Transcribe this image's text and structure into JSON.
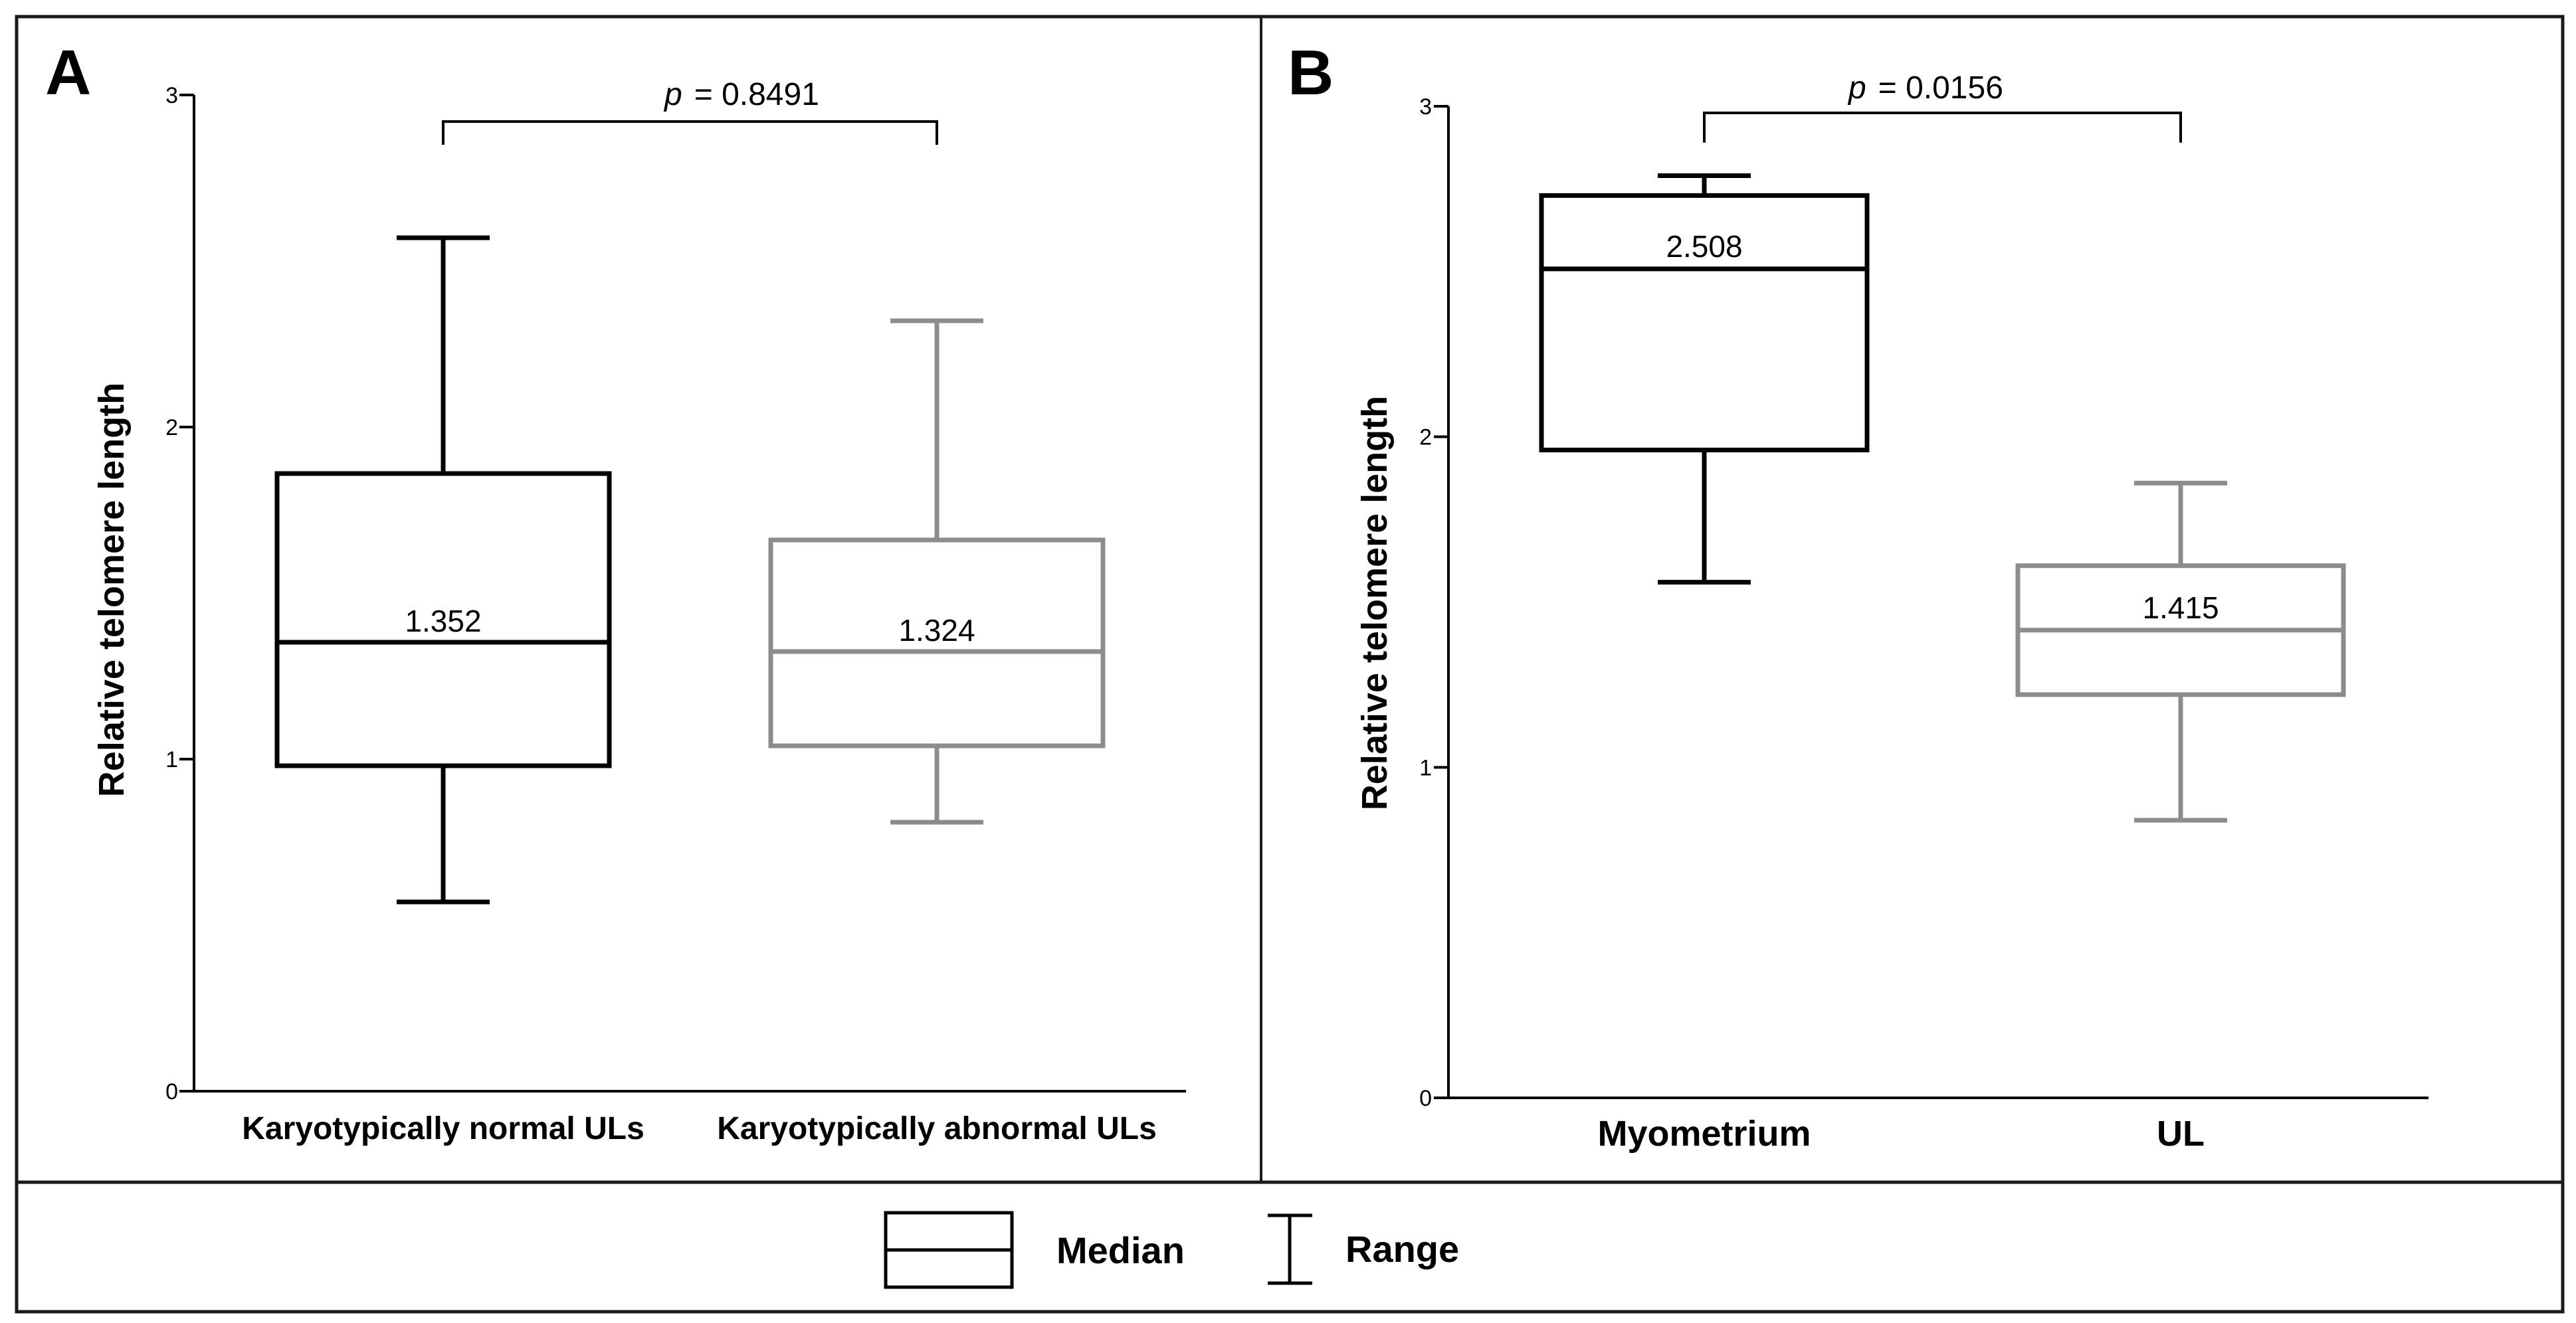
{
  "chart_data": [
    {
      "type": "boxplot",
      "panel_label": "A",
      "ylabel": "Relative telomere length",
      "ylim": [
        0,
        3
      ],
      "yticks": [
        0,
        1,
        2,
        3
      ],
      "ytick_labels": [
        "0",
        "1",
        "2",
        "3"
      ],
      "categories": [
        "Karyotypically normal ULs",
        "Karyotypically abnormal ULs"
      ],
      "series": [
        {
          "name": "Karyotypically normal ULs",
          "min": 0.57,
          "q1": 0.98,
          "median": 1.352,
          "q3": 1.86,
          "max": 2.57,
          "median_label": "1.352",
          "color": "#000000"
        },
        {
          "name": "Karyotypically abnormal ULs",
          "min": 0.81,
          "q1": 1.04,
          "median": 1.324,
          "q3": 1.66,
          "max": 2.32,
          "median_label": "1.324",
          "color": "#8c8c8c"
        }
      ],
      "annotation": {
        "p_symbol": "p",
        "p_text": "= 0.8491",
        "bracket_y": 2.92,
        "tick_drop": 0.07
      }
    },
    {
      "type": "boxplot",
      "panel_label": "B",
      "ylabel": "Relative telomere length",
      "ylim": [
        0,
        3
      ],
      "yticks": [
        0,
        1,
        2,
        3
      ],
      "ytick_labels": [
        "0",
        "1",
        "2",
        "3"
      ],
      "categories": [
        "Myometrium",
        "UL"
      ],
      "series": [
        {
          "name": "Myometrium",
          "min": 1.56,
          "q1": 1.96,
          "median": 2.508,
          "q3": 2.73,
          "max": 2.79,
          "median_label": "2.508",
          "color": "#000000"
        },
        {
          "name": "UL",
          "min": 0.84,
          "q1": 1.22,
          "median": 1.415,
          "q3": 1.61,
          "max": 1.86,
          "median_label": "1.415",
          "color": "#8c8c8c"
        }
      ],
      "annotation": {
        "p_symbol": "p",
        "p_text": "= 0.0156",
        "bracket_y": 2.98,
        "tick_drop": 0.09
      }
    }
  ],
  "legend": {
    "median_label": "Median",
    "range_label": "Range",
    "position": "bottom-center"
  }
}
